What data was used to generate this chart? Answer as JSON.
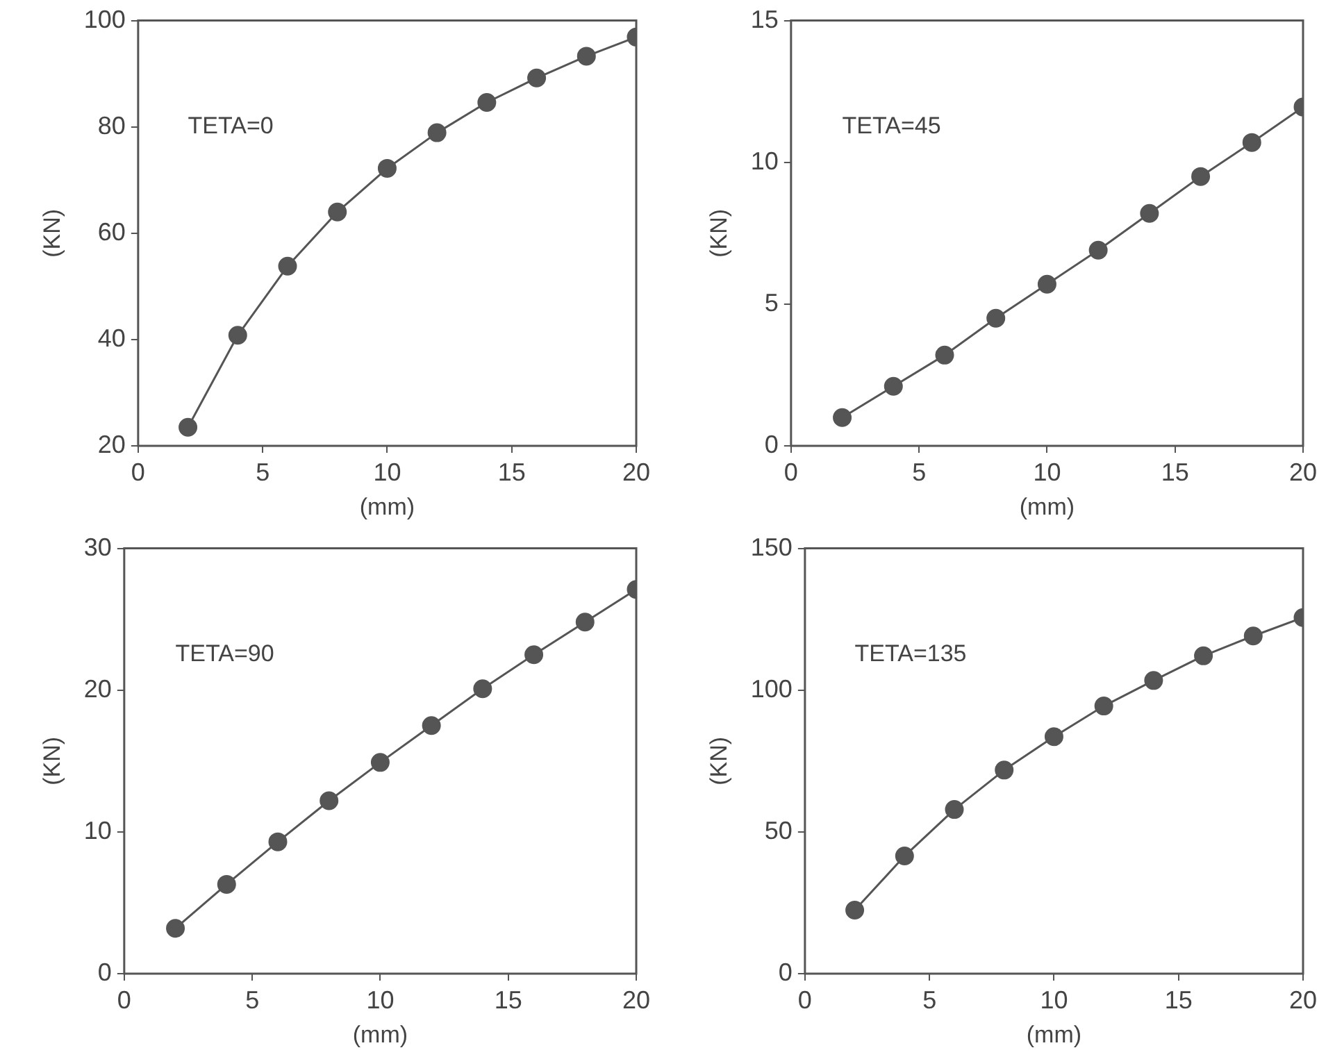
{
  "chart_data": [
    {
      "type": "line",
      "annotations": [
        "TETA=0"
      ],
      "xlabel": "(mm)",
      "ylabel": "(KN)",
      "x": [
        2,
        4,
        6,
        8,
        10,
        12,
        14,
        16,
        18,
        20
      ],
      "xlim": [
        0,
        20
      ],
      "xticks": [
        0,
        5,
        10,
        15,
        20
      ],
      "ylim": [
        20,
        100
      ],
      "yticks": [
        20,
        40,
        60,
        80,
        100
      ],
      "grid": false,
      "marker": "circle",
      "series": [
        {
          "color": "#555555",
          "values": [
            23.5,
            40.8,
            53.8,
            64.0,
            72.2,
            78.9,
            84.6,
            89.2,
            93.3,
            96.9
          ]
        }
      ]
    },
    {
      "type": "line",
      "annotations": [
        "TETA=45"
      ],
      "xlabel": "(mm)",
      "ylabel": "(KN)",
      "x": [
        2,
        4,
        6,
        8,
        10,
        12,
        14,
        16,
        18,
        20
      ],
      "xlim": [
        0,
        20
      ],
      "xticks": [
        0,
        5,
        10,
        15,
        20
      ],
      "ylim": [
        0,
        15
      ],
      "yticks": [
        0,
        5,
        10,
        15
      ],
      "grid": false,
      "marker": "circle",
      "series": [
        {
          "color": "#555555",
          "values": [
            1.0,
            2.1,
            3.2,
            4.5,
            5.7,
            6.9,
            8.2,
            9.5,
            10.7,
            11.95
          ]
        }
      ]
    },
    {
      "type": "line",
      "annotations": [
        "TETA=90"
      ],
      "xlabel": "(mm)",
      "ylabel": "(KN)",
      "x": [
        2,
        4,
        6,
        8,
        10,
        12,
        14,
        16,
        18,
        20
      ],
      "xlim": [
        0,
        20
      ],
      "xticks": [
        0,
        5,
        10,
        15,
        20
      ],
      "ylim": [
        0,
        30
      ],
      "yticks": [
        0,
        10,
        20,
        30
      ],
      "grid": false,
      "marker": "circle",
      "series": [
        {
          "color": "#555555",
          "values": [
            3.2,
            6.3,
            9.3,
            12.2,
            14.9,
            17.5,
            20.1,
            22.5,
            24.8,
            27.1
          ]
        }
      ]
    },
    {
      "type": "line",
      "annotations": [
        "TETA=135"
      ],
      "xlabel": "(mm)",
      "ylabel": "(KN)",
      "x": [
        2,
        4,
        6,
        8,
        10,
        12,
        14,
        16,
        18,
        20
      ],
      "xlim": [
        0,
        20
      ],
      "xticks": [
        0,
        5,
        10,
        15,
        20
      ],
      "ylim": [
        0,
        150
      ],
      "yticks": [
        0,
        50,
        100,
        150
      ],
      "grid": false,
      "marker": "circle",
      "series": [
        {
          "color": "#555555",
          "values": [
            22.4,
            41.5,
            57.9,
            71.8,
            83.6,
            94.4,
            103.4,
            112.1,
            119.1,
            125.6
          ]
        }
      ]
    }
  ]
}
